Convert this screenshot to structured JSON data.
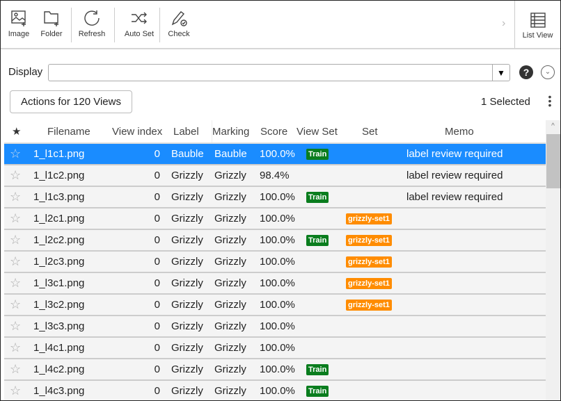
{
  "toolbar": {
    "image": "Image",
    "folder": "Folder",
    "refresh": "Refresh",
    "auto_set": "Auto Set",
    "check": "Check",
    "list_view": "List  View"
  },
  "display": {
    "label": "Display",
    "value": ""
  },
  "actions_label": "Actions for 120 Views",
  "selected_text": "1  Selected",
  "columns": {
    "star": "★",
    "filename": "Filename",
    "view_index": "View index",
    "label": "Label",
    "marking": "Marking",
    "score": "Score",
    "view_set": "View Set",
    "set": "Set",
    "memo": "Memo"
  },
  "colors": {
    "selected_row": "#1a8cff",
    "train_badge": "#0a7d1e",
    "set_badge": "#ff8c00"
  },
  "rows": [
    {
      "filename": "1_l1c1.png",
      "view_index": "0",
      "label": "Bauble",
      "marking": "Bauble",
      "score": "100.0%",
      "view_set": "Train",
      "set": "",
      "memo": "label review required",
      "selected": true
    },
    {
      "filename": "1_l1c2.png",
      "view_index": "0",
      "label": "Grizzly",
      "marking": "Grizzly",
      "score": "98.4%",
      "view_set": "",
      "set": "",
      "memo": "label review required"
    },
    {
      "filename": "1_l1c3.png",
      "view_index": "0",
      "label": "Grizzly",
      "marking": "Grizzly",
      "score": "100.0%",
      "view_set": "Train",
      "set": "",
      "memo": "label review required"
    },
    {
      "filename": "1_l2c1.png",
      "view_index": "0",
      "label": "Grizzly",
      "marking": "Grizzly",
      "score": "100.0%",
      "view_set": "",
      "set": "grizzly-set1",
      "memo": ""
    },
    {
      "filename": "1_l2c2.png",
      "view_index": "0",
      "label": "Grizzly",
      "marking": "Grizzly",
      "score": "100.0%",
      "view_set": "Train",
      "set": "grizzly-set1",
      "memo": ""
    },
    {
      "filename": "1_l2c3.png",
      "view_index": "0",
      "label": "Grizzly",
      "marking": "Grizzly",
      "score": "100.0%",
      "view_set": "",
      "set": "grizzly-set1",
      "memo": ""
    },
    {
      "filename": "1_l3c1.png",
      "view_index": "0",
      "label": "Grizzly",
      "marking": "Grizzly",
      "score": "100.0%",
      "view_set": "",
      "set": "grizzly-set1",
      "memo": ""
    },
    {
      "filename": "1_l3c2.png",
      "view_index": "0",
      "label": "Grizzly",
      "marking": "Grizzly",
      "score": "100.0%",
      "view_set": "",
      "set": "grizzly-set1",
      "memo": ""
    },
    {
      "filename": "1_l3c3.png",
      "view_index": "0",
      "label": "Grizzly",
      "marking": "Grizzly",
      "score": "100.0%",
      "view_set": "",
      "set": "",
      "memo": ""
    },
    {
      "filename": "1_l4c1.png",
      "view_index": "0",
      "label": "Grizzly",
      "marking": "Grizzly",
      "score": "100.0%",
      "view_set": "",
      "set": "",
      "memo": ""
    },
    {
      "filename": "1_l4c2.png",
      "view_index": "0",
      "label": "Grizzly",
      "marking": "Grizzly",
      "score": "100.0%",
      "view_set": "Train",
      "set": "",
      "memo": ""
    },
    {
      "filename": "1_l4c3.png",
      "view_index": "0",
      "label": "Grizzly",
      "marking": "Grizzly",
      "score": "100.0%",
      "view_set": "Train",
      "set": "",
      "memo": ""
    }
  ]
}
